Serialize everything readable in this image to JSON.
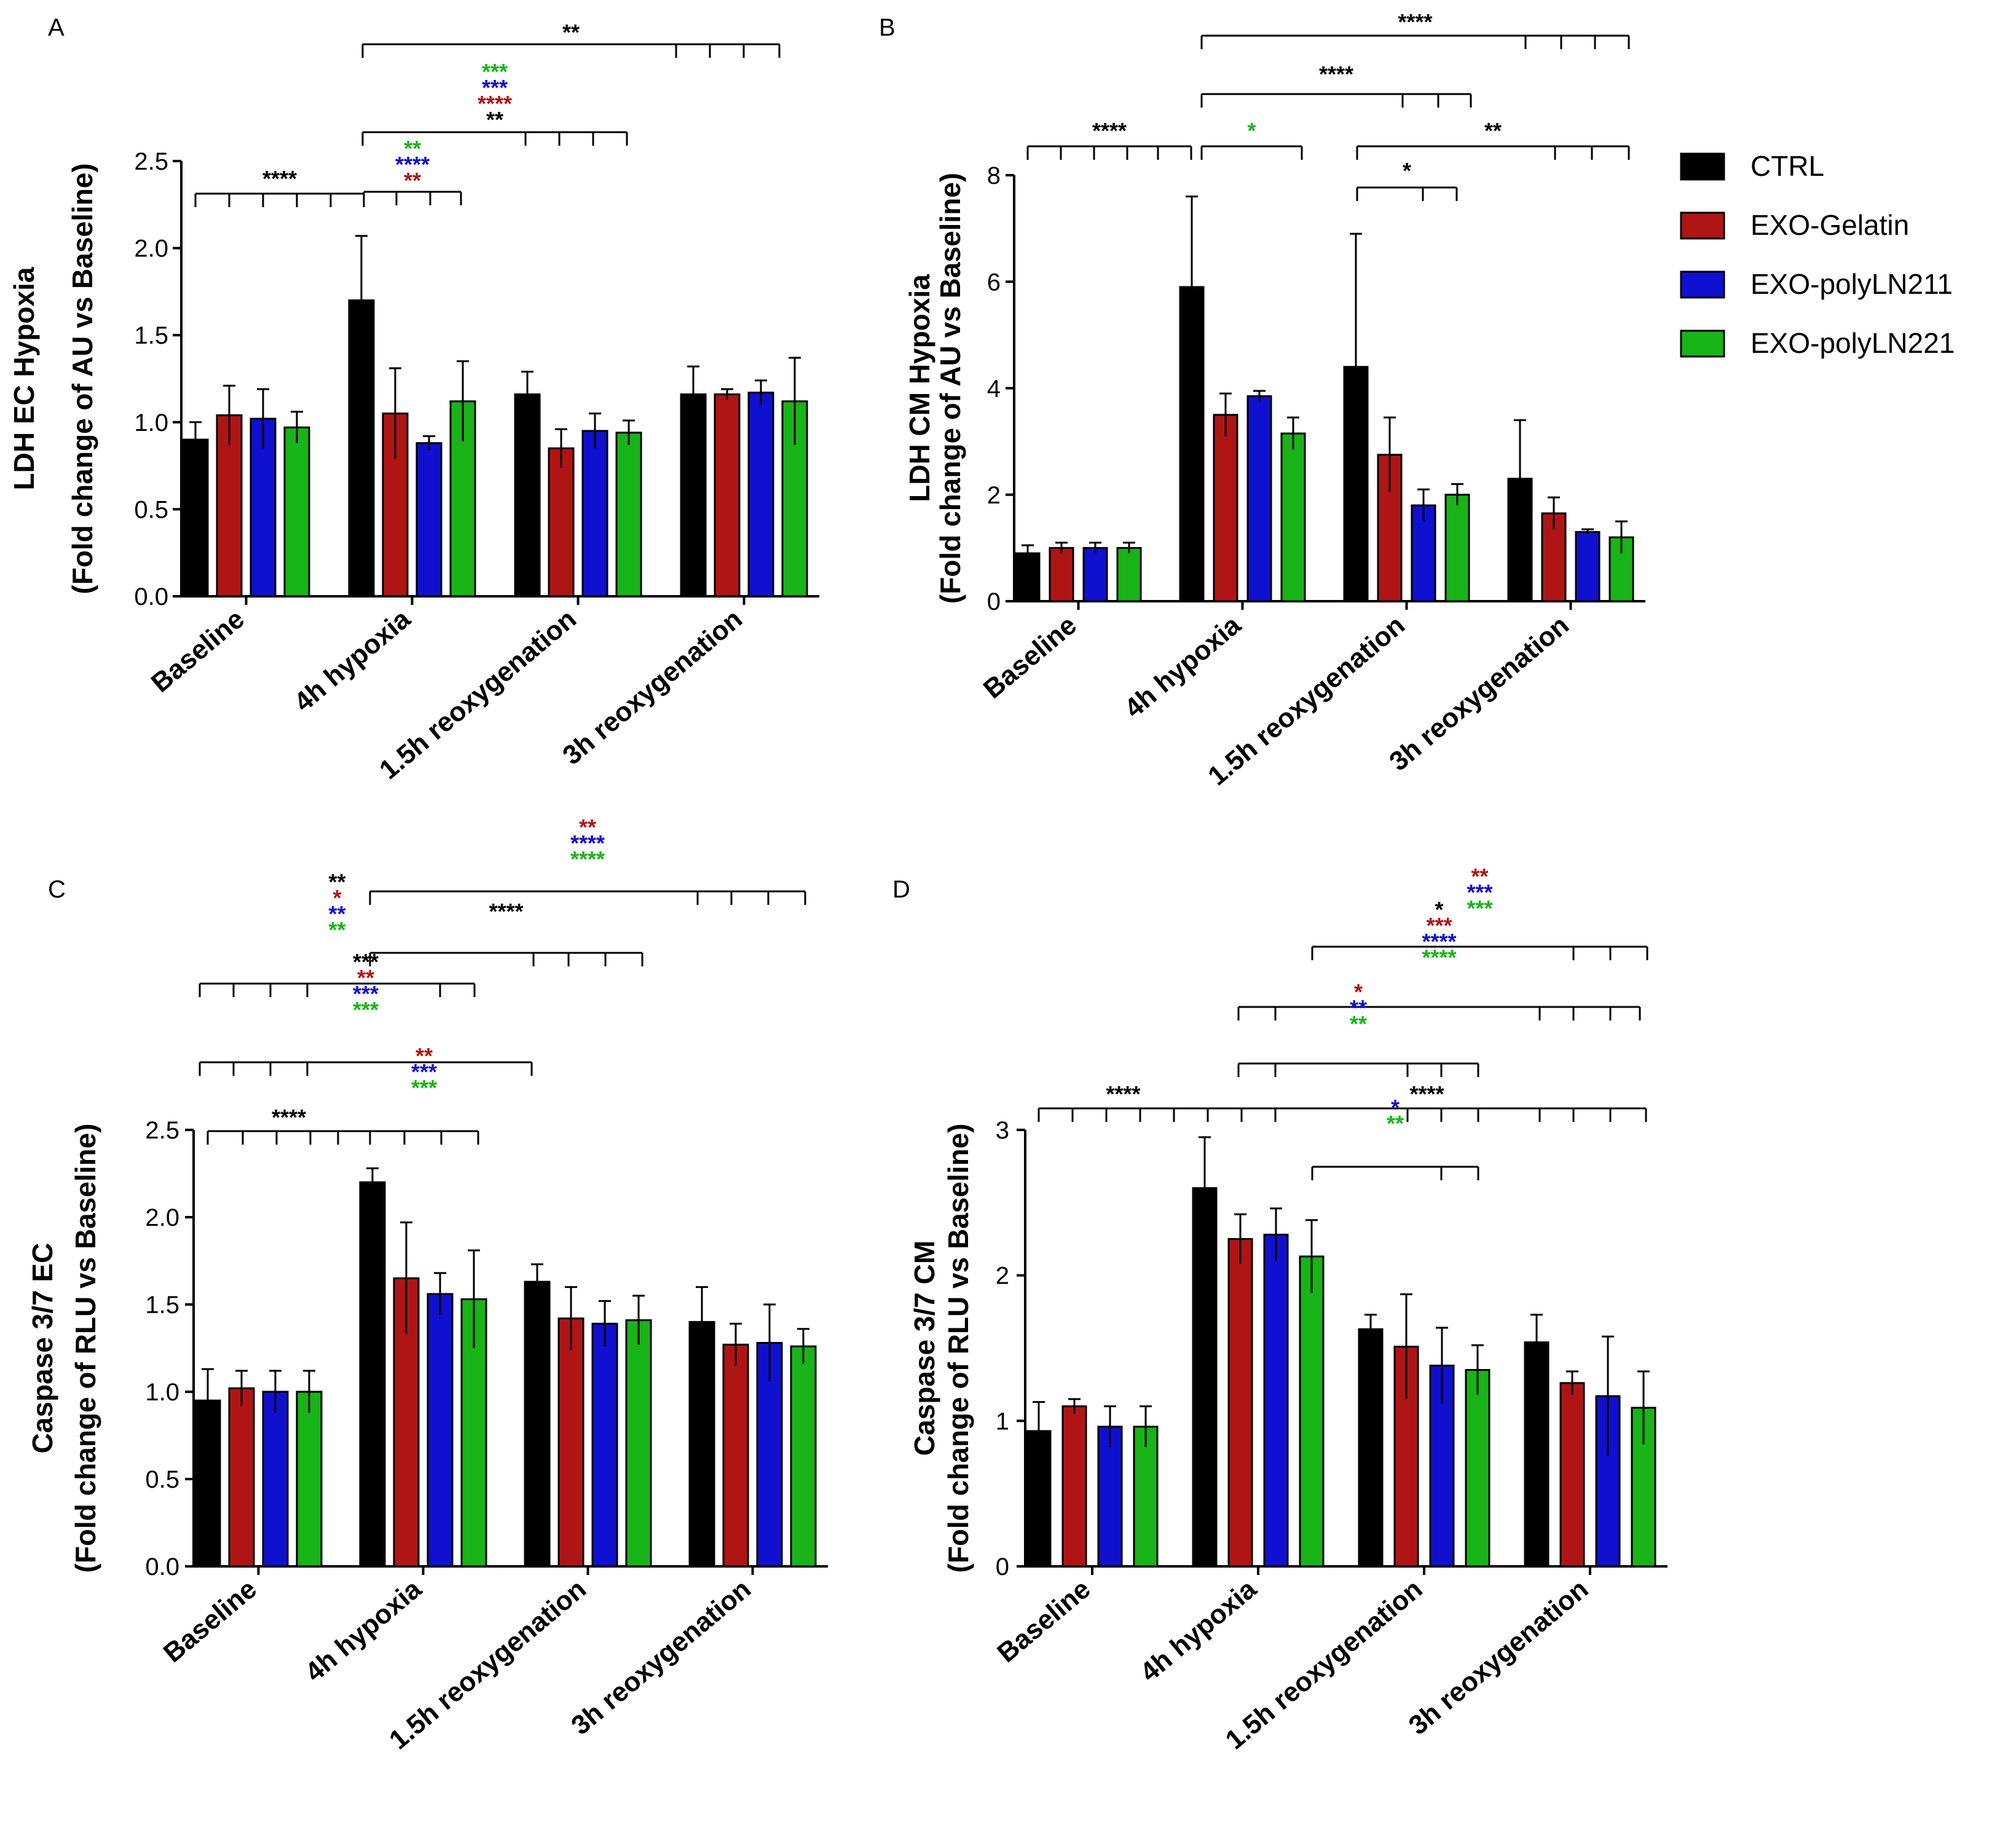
{
  "legend": [
    {
      "name": "CTRL",
      "color": "#000000"
    },
    {
      "name": "EXO-Gelatin",
      "color": "#b01515"
    },
    {
      "name": "EXO-polyLN211",
      "color": "#1010d0"
    },
    {
      "name": "EXO-polyLN221",
      "color": "#18b418"
    }
  ],
  "chart_data": [
    {
      "panel": "A",
      "type": "bar",
      "ylabel": [
        "LDH EC Hypoxia",
        "(Fold change of AU vs Baseline)"
      ],
      "categories": [
        "Baseline",
        "4h hypoxia",
        "1.5h reoxygenation",
        "3h reoxygenation"
      ],
      "ylim": [
        0,
        2.5
      ],
      "yticks": [
        "0.0",
        "0.5",
        "1.0",
        "1.5",
        "2.0",
        "2.5"
      ],
      "series": [
        {
          "name": "CTRL",
          "values": [
            0.9,
            1.7,
            1.16,
            1.16
          ],
          "errors": [
            0.1,
            0.37,
            0.13,
            0.16
          ]
        },
        {
          "name": "EXO-Gelatin",
          "values": [
            1.04,
            1.05,
            0.85,
            1.16
          ],
          "errors": [
            0.17,
            0.26,
            0.11,
            0.03
          ]
        },
        {
          "name": "EXO-polyLN211",
          "values": [
            1.02,
            0.88,
            0.95,
            1.17
          ],
          "errors": [
            0.17,
            0.04,
            0.1,
            0.07
          ]
        },
        {
          "name": "EXO-polyLN221",
          "values": [
            0.97,
            1.12,
            0.94,
            1.12
          ],
          "errors": [
            0.09,
            0.23,
            0.07,
            0.25
          ]
        }
      ],
      "significance": [
        {
          "labels": [
            {
              "text": "**",
              "color": "#000000"
            }
          ]
        },
        {
          "labels": [
            {
              "text": "***",
              "color": "#18b418"
            },
            {
              "text": "***",
              "color": "#1010d0"
            },
            {
              "text": "****",
              "color": "#b01515"
            },
            {
              "text": "**",
              "color": "#000000"
            }
          ]
        },
        {
          "labels": [
            {
              "text": "****",
              "color": "#000000"
            }
          ]
        },
        {
          "labels": [
            {
              "text": "**",
              "color": "#18b418"
            },
            {
              "text": "****",
              "color": "#1010d0"
            },
            {
              "text": "**",
              "color": "#b01515"
            }
          ]
        }
      ]
    },
    {
      "panel": "B",
      "type": "bar",
      "ylabel": [
        "LDH CM Hypoxia",
        "(Fold change of AU vs Baseline)"
      ],
      "categories": [
        "Baseline",
        "4h hypoxia",
        "1.5h reoxygenation",
        "3h reoxygenation"
      ],
      "ylim": [
        0,
        8
      ],
      "yticks": [
        "0",
        "2",
        "4",
        "6",
        "8"
      ],
      "series": [
        {
          "name": "CTRL",
          "values": [
            0.9,
            5.9,
            4.4,
            2.3
          ],
          "errors": [
            0.15,
            1.7,
            2.5,
            1.1
          ]
        },
        {
          "name": "EXO-Gelatin",
          "values": [
            1.0,
            3.5,
            2.75,
            1.65
          ],
          "errors": [
            0.1,
            0.4,
            0.7,
            0.3
          ]
        },
        {
          "name": "EXO-polyLN211",
          "values": [
            1.0,
            3.85,
            1.8,
            1.3
          ],
          "errors": [
            0.1,
            0.1,
            0.3,
            0.05
          ]
        },
        {
          "name": "EXO-polyLN221",
          "values": [
            1.0,
            3.15,
            2.0,
            1.2
          ],
          "errors": [
            0.1,
            0.3,
            0.2,
            0.3
          ]
        }
      ],
      "significance": [
        {
          "labels": [
            {
              "text": "****",
              "color": "#000000"
            }
          ]
        },
        {
          "labels": [
            {
              "text": "****",
              "color": "#000000"
            }
          ]
        },
        {
          "labels": [
            {
              "text": "****",
              "color": "#000000"
            }
          ]
        },
        {
          "labels": [
            {
              "text": "*",
              "color": "#18b418"
            }
          ]
        },
        {
          "labels": [
            {
              "text": "**",
              "color": "#000000"
            }
          ]
        },
        {
          "labels": [
            {
              "text": "*",
              "color": "#000000"
            }
          ]
        }
      ]
    },
    {
      "panel": "C",
      "type": "bar",
      "ylabel": [
        "Caspase 3/7   EC",
        "(Fold change of RLU vs Baseline)"
      ],
      "categories": [
        "Baseline",
        "4h hypoxia",
        "1.5h reoxygenation",
        "3h reoxygenation"
      ],
      "ylim": [
        0,
        2.5
      ],
      "yticks": [
        "0.0",
        "0.5",
        "1.0",
        "1.5",
        "2.0",
        "2.5"
      ],
      "series": [
        {
          "name": "CTRL",
          "values": [
            0.95,
            2.2,
            1.63,
            1.4
          ],
          "errors": [
            0.18,
            0.08,
            0.1,
            0.2
          ]
        },
        {
          "name": "EXO-Gelatin",
          "values": [
            1.02,
            1.65,
            1.42,
            1.27
          ],
          "errors": [
            0.1,
            0.32,
            0.18,
            0.12
          ]
        },
        {
          "name": "EXO-polyLN211",
          "values": [
            1.0,
            1.56,
            1.39,
            1.28
          ],
          "errors": [
            0.12,
            0.12,
            0.13,
            0.22
          ]
        },
        {
          "name": "EXO-polyLN221",
          "values": [
            1.0,
            1.53,
            1.41,
            1.26
          ],
          "errors": [
            0.12,
            0.28,
            0.14,
            0.1
          ]
        }
      ],
      "significance": [
        {
          "labels": [
            {
              "text": "****",
              "color": "#000000"
            }
          ]
        },
        {
          "labels": [
            {
              "text": "**",
              "color": "#b01515"
            },
            {
              "text": "****",
              "color": "#1010d0"
            },
            {
              "text": "****",
              "color": "#18b418"
            }
          ]
        },
        {
          "labels": [
            {
              "text": "**",
              "color": "#000000"
            },
            {
              "text": "*",
              "color": "#b01515"
            },
            {
              "text": "**",
              "color": "#1010d0"
            },
            {
              "text": "**",
              "color": "#18b418"
            }
          ]
        },
        {
          "labels": [
            {
              "text": "***",
              "color": "#000000"
            },
            {
              "text": "**",
              "color": "#b01515"
            },
            {
              "text": "***",
              "color": "#1010d0"
            },
            {
              "text": "***",
              "color": "#18b418"
            }
          ]
        },
        {
          "labels": [
            {
              "text": "****",
              "color": "#000000"
            }
          ]
        },
        {
          "labels": [
            {
              "text": "**",
              "color": "#b01515"
            },
            {
              "text": "***",
              "color": "#1010d0"
            },
            {
              "text": "***",
              "color": "#18b418"
            }
          ]
        }
      ]
    },
    {
      "panel": "D",
      "type": "bar",
      "ylabel": [
        "Caspase 3/7   CM",
        "(Fold change of RLU vs Baseline)"
      ],
      "categories": [
        "Baseline",
        "4h hypoxia",
        "1.5h reoxygenation",
        "3h reoxygenation"
      ],
      "ylim": [
        0,
        3
      ],
      "yticks": [
        "0",
        "1",
        "2",
        "3"
      ],
      "series": [
        {
          "name": "CTRL",
          "values": [
            0.93,
            2.6,
            1.63,
            1.54
          ],
          "errors": [
            0.2,
            0.35,
            0.1,
            0.19
          ]
        },
        {
          "name": "EXO-Gelatin",
          "values": [
            1.1,
            2.25,
            1.51,
            1.26
          ],
          "errors": [
            0.05,
            0.17,
            0.36,
            0.08
          ]
        },
        {
          "name": "EXO-polyLN211",
          "values": [
            0.96,
            2.28,
            1.38,
            1.17
          ],
          "errors": [
            0.14,
            0.18,
            0.26,
            0.41
          ]
        },
        {
          "name": "EXO-polyLN221",
          "values": [
            0.96,
            2.13,
            1.35,
            1.09
          ],
          "errors": [
            0.14,
            0.25,
            0.17,
            0.25
          ]
        }
      ],
      "significance": [
        {
          "labels": [
            {
              "text": "**",
              "color": "#b01515"
            },
            {
              "text": "***",
              "color": "#1010d0"
            },
            {
              "text": "***",
              "color": "#18b418"
            }
          ]
        },
        {
          "labels": [
            {
              "text": "*",
              "color": "#000000"
            },
            {
              "text": "***",
              "color": "#b01515"
            },
            {
              "text": "****",
              "color": "#1010d0"
            },
            {
              "text": "****",
              "color": "#18b418"
            }
          ]
        },
        {
          "labels": [
            {
              "text": "*",
              "color": "#b01515"
            },
            {
              "text": "**",
              "color": "#1010d0"
            },
            {
              "text": "**",
              "color": "#18b418"
            }
          ]
        },
        {
          "labels": [
            {
              "text": "****",
              "color": "#000000"
            }
          ]
        },
        {
          "labels": [
            {
              "text": "****",
              "color": "#000000"
            }
          ]
        },
        {
          "labels": [
            {
              "text": "*",
              "color": "#1010d0"
            },
            {
              "text": "**",
              "color": "#18b418"
            }
          ]
        }
      ]
    }
  ]
}
